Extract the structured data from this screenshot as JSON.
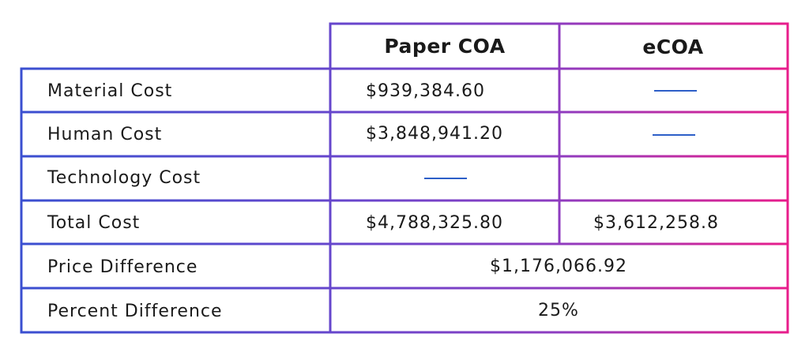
{
  "table": {
    "columns": [
      "Paper COA",
      "eCOA"
    ],
    "rows": [
      {
        "label": "Material Cost",
        "paper": "$939,384.60"
      },
      {
        "label": "Human Cost",
        "paper": "$3,848,941.20"
      },
      {
        "label": "Technology Cost"
      },
      {
        "label": "Total Cost",
        "paper": "$4,788,325.80",
        "ecoa": "$3,612,258.8"
      },
      {
        "label": "Price Difference",
        "value": "$1,176,066.92"
      },
      {
        "label": "Percent Difference",
        "value": "25%"
      }
    ]
  }
}
